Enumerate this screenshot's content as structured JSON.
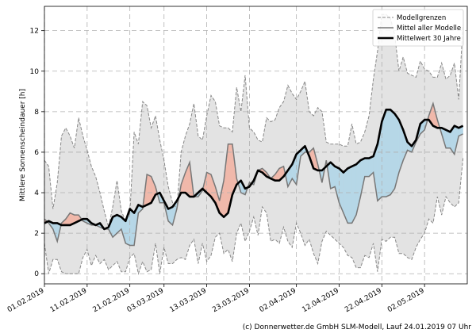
{
  "chart_data": {
    "type": "line",
    "ylabel": "Mittlere Sonnenscheindauer [h]",
    "xlabel": "",
    "ylim": [
      -0.5,
      13.2
    ],
    "xlim": [
      0,
      99
    ],
    "grid": true,
    "y_ticks": [
      0,
      2,
      4,
      6,
      8,
      10,
      12
    ],
    "x_ticks": [
      {
        "day": 0,
        "label": "01.02.2019"
      },
      {
        "day": 10,
        "label": "11.02.2019"
      },
      {
        "day": 20,
        "label": "21.02.2019"
      },
      {
        "day": 28,
        "label": "03.03.2019"
      },
      {
        "day": 38,
        "label": "13.03.2019"
      },
      {
        "day": 48,
        "label": "23.03.2019"
      },
      {
        "day": 59,
        "label": "02.04.2019"
      },
      {
        "day": 69,
        "label": "12.04.2019"
      },
      {
        "day": 79,
        "label": "22.04.2019"
      },
      {
        "day": 89,
        "label": "02.05.2019"
      }
    ],
    "legend": {
      "position": "top-right",
      "entries": [
        {
          "label": "Modellgrenzen",
          "style": "dashed"
        },
        {
          "label": "Mittel aller Modelle",
          "style": "solid-gray"
        },
        {
          "label": "Mittelwert 30 Jahre",
          "style": "solid-black"
        }
      ]
    },
    "series": [
      {
        "name": "Modellgrenzen (max)",
        "values": [
          5.6,
          5.3,
          3.2,
          4.5,
          6.8,
          7.2,
          6.8,
          6.2,
          7.7,
          6.8,
          6.1,
          5.3,
          4.8,
          4.0,
          3.1,
          2.3,
          3.3,
          4.6,
          3.1,
          2.6,
          3.0,
          7.0,
          6.4,
          8.5,
          8.3,
          7.2,
          7.8,
          6.6,
          5.6,
          4.3,
          3.5,
          3.2,
          6.0,
          6.8,
          7.4,
          8.4,
          6.8,
          6.6,
          7.8,
          8.8,
          8.5,
          7.3,
          7.2,
          7.2,
          7.0,
          9.2,
          8.0,
          9.8,
          7.2,
          7.0,
          6.6,
          6.5,
          7.7,
          7.5,
          7.6,
          8.2,
          8.5,
          9.3,
          8.9,
          8.6,
          9.0,
          9.5,
          8.0,
          7.8,
          8.2,
          8.0,
          6.5,
          6.4,
          6.4,
          6.4,
          6.3,
          6.3,
          7.4,
          6.4,
          6.5,
          7.0,
          7.8,
          9.6,
          11.0,
          12.8,
          12.8,
          12.6,
          11.8,
          10.0,
          10.7,
          9.9,
          9.8,
          9.7,
          10.5,
          10.1,
          10.0,
          9.7,
          9.7,
          10.4,
          9.6,
          9.8,
          10.4,
          8.6,
          12.3
        ],
        "color": "#888888"
      },
      {
        "name": "Modellgrenzen (min)",
        "values": [
          1.5,
          0.0,
          0.7,
          0.7,
          0.1,
          0.0,
          0.0,
          0.0,
          0.0,
          0.8,
          1.2,
          0.4,
          0.9,
          0.5,
          0.7,
          0.2,
          0.4,
          0.6,
          0.1,
          0.1,
          0.8,
          1.0,
          0.0,
          0.6,
          0.1,
          0.2,
          1.5,
          0.0,
          1.3,
          0.5,
          0.5,
          0.7,
          0.8,
          0.7,
          1.4,
          1.7,
          0.5,
          1.5,
          0.6,
          0.9,
          1.8,
          2.0,
          1.0,
          1.2,
          0.6,
          2.0,
          2.5,
          1.6,
          2.1,
          2.8,
          1.9,
          3.3,
          3.0,
          1.6,
          1.7,
          1.5,
          2.3,
          1.6,
          1.3,
          2.5,
          2.0,
          1.4,
          1.7,
          1.0,
          0.5,
          1.6,
          2.1,
          1.9,
          1.7,
          1.5,
          1.3,
          0.9,
          0.8,
          0.3,
          0.3,
          0.9,
          0.8,
          1.5,
          0.1,
          1.7,
          1.6,
          1.8,
          1.8,
          1.0,
          1.0,
          0.8,
          0.7,
          1.3,
          1.7,
          2.0,
          2.7,
          2.5,
          3.8,
          2.9,
          3.8,
          3.5,
          3.3,
          3.5,
          5.7
        ],
        "color": "#888888"
      },
      {
        "name": "Mittel aller Modelle",
        "values": [
          2.7,
          2.5,
          2.2,
          1.6,
          2.5,
          2.7,
          3.0,
          2.9,
          2.9,
          2.6,
          2.5,
          2.4,
          2.4,
          2.3,
          2.2,
          2.2,
          1.8,
          2.0,
          2.2,
          1.5,
          1.4,
          1.4,
          3.0,
          3.2,
          4.9,
          4.8,
          4.3,
          3.5,
          3.5,
          2.6,
          2.4,
          3.2,
          4.4,
          5.0,
          5.5,
          3.8,
          3.8,
          4.1,
          5.0,
          4.9,
          4.3,
          3.6,
          4.6,
          6.4,
          6.4,
          4.7,
          4.0,
          3.9,
          4.5,
          4.4,
          5.1,
          5.2,
          5.0,
          4.7,
          4.9,
          5.2,
          5.3,
          4.3,
          4.7,
          4.4,
          5.8,
          6.0,
          6.0,
          6.2,
          5.4,
          4.5,
          5.6,
          4.2,
          4.3,
          3.5,
          3.0,
          2.5,
          2.5,
          2.9,
          3.8,
          4.8,
          4.8,
          5.0,
          3.6,
          3.8,
          3.8,
          3.9,
          4.2,
          5.0,
          5.6,
          6.1,
          6.0,
          6.5,
          6.9,
          7.1,
          7.8,
          8.4,
          7.6,
          6.9,
          6.2,
          6.2,
          5.9,
          6.8,
          6.9
        ],
        "color": "#777777"
      },
      {
        "name": "Mittelwert 30 Jahre",
        "values": [
          2.5,
          2.6,
          2.5,
          2.5,
          2.4,
          2.4,
          2.4,
          2.5,
          2.6,
          2.7,
          2.7,
          2.5,
          2.4,
          2.5,
          2.2,
          2.3,
          2.8,
          2.9,
          2.8,
          2.6,
          3.2,
          3.0,
          3.4,
          3.3,
          3.4,
          3.5,
          3.9,
          4.0,
          3.6,
          3.2,
          3.3,
          3.6,
          4.0,
          4.0,
          3.8,
          3.8,
          4.0,
          4.2,
          4.0,
          3.8,
          3.5,
          3.0,
          2.8,
          3.0,
          3.9,
          4.4,
          4.6,
          4.2,
          4.3,
          4.6,
          5.1,
          5.0,
          4.8,
          4.7,
          4.6,
          4.6,
          4.8,
          5.1,
          5.4,
          5.9,
          6.1,
          6.3,
          5.8,
          5.2,
          5.1,
          5.1,
          5.3,
          5.5,
          5.3,
          5.2,
          5.0,
          5.2,
          5.3,
          5.4,
          5.6,
          5.7,
          5.7,
          5.8,
          6.4,
          7.5,
          8.1,
          8.1,
          7.9,
          7.6,
          7.1,
          6.5,
          6.3,
          6.6,
          7.4,
          7.6,
          7.6,
          7.3,
          7.2,
          7.2,
          7.1,
          7.0,
          7.3,
          7.2,
          7.3
        ],
        "color": "#000000"
      }
    ]
  },
  "colors": {
    "band_fill": "#e3e3e3",
    "above_fill": "#f0b8aa",
    "below_fill": "#b6d7e7",
    "grid": "#b0b0b0"
  },
  "footer": {
    "copyright": "(c) Donnerwetter.de GmbH SLM-Modell, Lauf 24.01.2019 07 Uhr"
  }
}
